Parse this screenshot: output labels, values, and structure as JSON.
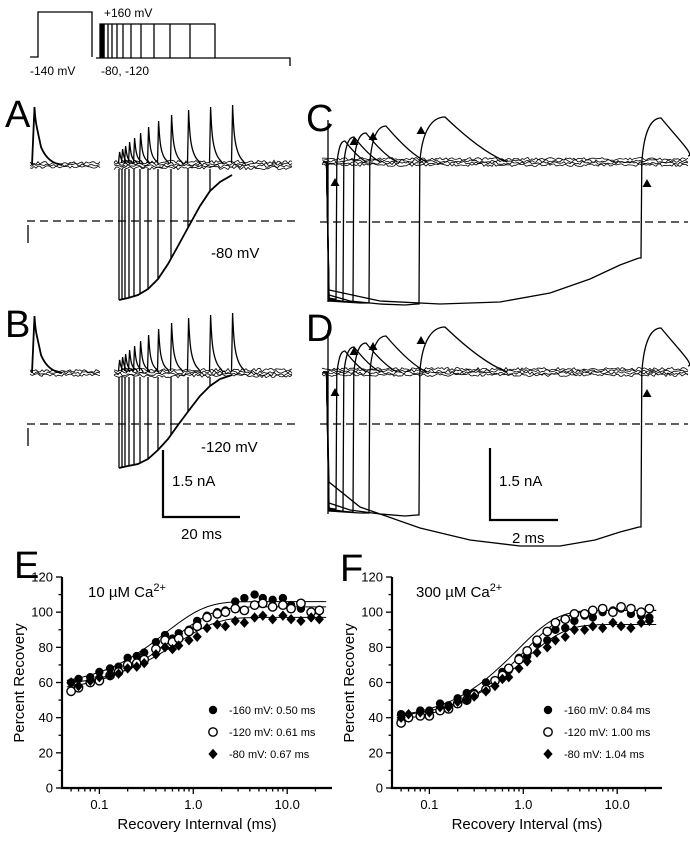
{
  "figure": {
    "panels": {
      "a": "A",
      "b": "B",
      "c": "C",
      "d": "D",
      "e": "E",
      "f": "F"
    },
    "protocol": {
      "top_label": "+160 mV",
      "left_label": "-140 mV",
      "bottom_label": "-80, -120"
    },
    "labels": {
      "a_voltage": "-80 mV",
      "b_voltage": "-120 mV",
      "b_scale_current": "1.5 nA",
      "b_scale_time": "20 ms",
      "d_scale_current": "1.5 nA",
      "d_scale_time": "2 ms"
    }
  },
  "chart_data": [
    {
      "id": "E",
      "type": "scatter",
      "title": "10 µM Ca",
      "title_sup": "2+",
      "xlabel": "Recovery Internval (ms)",
      "ylabel": "Percent Recovery",
      "xscale": "log",
      "xlim": [
        0.04,
        30
      ],
      "ylim": [
        0,
        120
      ],
      "xticks": [
        {
          "v": 0.1,
          "label": "0.1"
        },
        {
          "v": 1,
          "label": "1.0"
        },
        {
          "v": 10,
          "label": "10.0"
        }
      ],
      "yticks": [
        0,
        20,
        40,
        60,
        80,
        100,
        120
      ],
      "legend_position": "lower-right",
      "series": [
        {
          "name": "-160 mV: 0.50 ms",
          "marker": "circle-filled",
          "tau": 0.5,
          "fit_y0": 57,
          "fit_plateau": 106,
          "points": [
            [
              0.05,
              60
            ],
            [
              0.06,
              62
            ],
            [
              0.08,
              63
            ],
            [
              0.1,
              66
            ],
            [
              0.13,
              68
            ],
            [
              0.16,
              69
            ],
            [
              0.2,
              74
            ],
            [
              0.25,
              75
            ],
            [
              0.3,
              77
            ],
            [
              0.4,
              83
            ],
            [
              0.5,
              87
            ],
            [
              0.6,
              85
            ],
            [
              0.7,
              88
            ],
            [
              0.9,
              90
            ],
            [
              1.1,
              95
            ],
            [
              1.4,
              98
            ],
            [
              1.8,
              100
            ],
            [
              2.2,
              101
            ],
            [
              2.8,
              106
            ],
            [
              3.5,
              108
            ],
            [
              4.5,
              110
            ],
            [
              5.5,
              108
            ],
            [
              7,
              107
            ],
            [
              9,
              108
            ],
            [
              11,
              104
            ],
            [
              14,
              102
            ],
            [
              18,
              100
            ],
            [
              22,
              101
            ]
          ]
        },
        {
          "name": "-120 mV: 0.61 ms",
          "marker": "circle-open",
          "tau": 0.61,
          "fit_y0": 54,
          "fit_plateau": 103,
          "points": [
            [
              0.05,
              55
            ],
            [
              0.06,
              57
            ],
            [
              0.08,
              60
            ],
            [
              0.1,
              61
            ],
            [
              0.13,
              64
            ],
            [
              0.16,
              66
            ],
            [
              0.2,
              70
            ],
            [
              0.25,
              71
            ],
            [
              0.3,
              73
            ],
            [
              0.4,
              79
            ],
            [
              0.5,
              84
            ],
            [
              0.6,
              83
            ],
            [
              0.7,
              85
            ],
            [
              0.9,
              89
            ],
            [
              1.1,
              92
            ],
            [
              1.4,
              97
            ],
            [
              1.8,
              99
            ],
            [
              2.2,
              100
            ],
            [
              2.8,
              102
            ],
            [
              3.5,
              101
            ],
            [
              4.5,
              104
            ],
            [
              5.5,
              105
            ],
            [
              7,
              103
            ],
            [
              9,
              104
            ],
            [
              11,
              102
            ],
            [
              14,
              105
            ],
            [
              18,
              100
            ],
            [
              22,
              101
            ]
          ]
        },
        {
          "name": "-80 mV: 0.67 ms",
          "marker": "diamond-filled",
          "tau": 0.67,
          "fit_y0": 57,
          "fit_plateau": 97,
          "points": [
            [
              0.05,
              60
            ],
            [
              0.06,
              58
            ],
            [
              0.08,
              61
            ],
            [
              0.1,
              63
            ],
            [
              0.13,
              64
            ],
            [
              0.16,
              65
            ],
            [
              0.2,
              68
            ],
            [
              0.25,
              69
            ],
            [
              0.3,
              71
            ],
            [
              0.4,
              76
            ],
            [
              0.5,
              80
            ],
            [
              0.6,
              79
            ],
            [
              0.7,
              81
            ],
            [
              0.9,
              84
            ],
            [
              1.1,
              86
            ],
            [
              1.4,
              91
            ],
            [
              1.8,
              93
            ],
            [
              2.2,
              92
            ],
            [
              2.8,
              95
            ],
            [
              3.5,
              94
            ],
            [
              4.5,
              97
            ],
            [
              5.5,
              98
            ],
            [
              7,
              96
            ],
            [
              9,
              98
            ],
            [
              11,
              96
            ],
            [
              14,
              95
            ],
            [
              18,
              97
            ],
            [
              22,
              96
            ]
          ]
        }
      ]
    },
    {
      "id": "F",
      "type": "scatter",
      "title": "300 µM Ca",
      "title_sup": "2+",
      "xlabel": "Recovery Interval (ms)",
      "ylabel": "Percent Recovery",
      "xscale": "log",
      "xlim": [
        0.04,
        30
      ],
      "ylim": [
        0,
        120
      ],
      "xticks": [
        {
          "v": 0.1,
          "label": "0.1"
        },
        {
          "v": 1,
          "label": "1.0"
        },
        {
          "v": 10,
          "label": "10.0"
        }
      ],
      "yticks": [
        0,
        20,
        40,
        60,
        80,
        100,
        120
      ],
      "legend_position": "lower-right",
      "series": [
        {
          "name": "-160 mV: 0.84 ms",
          "marker": "circle-filled",
          "tau": 0.84,
          "fit_y0": 38,
          "fit_plateau": 101,
          "points": [
            [
              0.05,
              42
            ],
            [
              0.06,
              41
            ],
            [
              0.08,
              44
            ],
            [
              0.1,
              44
            ],
            [
              0.13,
              48
            ],
            [
              0.16,
              47
            ],
            [
              0.2,
              51
            ],
            [
              0.25,
              54
            ],
            [
              0.3,
              54
            ],
            [
              0.4,
              60
            ],
            [
              0.5,
              61
            ],
            [
              0.6,
              66
            ],
            [
              0.7,
              67
            ],
            [
              0.9,
              74
            ],
            [
              1.1,
              75
            ],
            [
              1.4,
              82
            ],
            [
              1.8,
              84
            ],
            [
              2.2,
              90
            ],
            [
              2.8,
              91
            ],
            [
              3.5,
              95
            ],
            [
              4.5,
              98
            ],
            [
              5.5,
              97
            ],
            [
              7,
              100
            ],
            [
              9,
              101
            ],
            [
              11,
              102
            ],
            [
              14,
              99
            ],
            [
              18,
              98
            ],
            [
              22,
              97
            ]
          ]
        },
        {
          "name": "-120 mV: 1.00 ms",
          "marker": "circle-open",
          "tau": 1.0,
          "fit_y0": 36,
          "fit_plateau": 101,
          "points": [
            [
              0.05,
              37
            ],
            [
              0.06,
              40
            ],
            [
              0.08,
              41
            ],
            [
              0.1,
              41
            ],
            [
              0.13,
              44
            ],
            [
              0.16,
              45
            ],
            [
              0.2,
              48
            ],
            [
              0.25,
              50
            ],
            [
              0.3,
              53
            ],
            [
              0.4,
              56
            ],
            [
              0.5,
              61
            ],
            [
              0.6,
              64
            ],
            [
              0.7,
              68
            ],
            [
              0.9,
              73
            ],
            [
              1.1,
              78
            ],
            [
              1.4,
              84
            ],
            [
              1.8,
              89
            ],
            [
              2.2,
              94
            ],
            [
              2.8,
              96
            ],
            [
              3.5,
              99
            ],
            [
              4.5,
              99
            ],
            [
              5.5,
              101
            ],
            [
              7,
              102
            ],
            [
              9,
              100
            ],
            [
              11,
              103
            ],
            [
              14,
              102
            ],
            [
              18,
              100
            ],
            [
              22,
              102
            ]
          ]
        },
        {
          "name": "-80 mV: 1.04 ms",
          "marker": "diamond-filled",
          "tau": 1.04,
          "fit_y0": 39,
          "fit_plateau": 93,
          "points": [
            [
              0.05,
              40
            ],
            [
              0.06,
              42
            ],
            [
              0.08,
              43
            ],
            [
              0.1,
              43
            ],
            [
              0.13,
              46
            ],
            [
              0.16,
              46
            ],
            [
              0.2,
              49
            ],
            [
              0.25,
              50
            ],
            [
              0.3,
              52
            ],
            [
              0.4,
              55
            ],
            [
              0.5,
              58
            ],
            [
              0.6,
              62
            ],
            [
              0.7,
              63
            ],
            [
              0.9,
              68
            ],
            [
              1.1,
              72
            ],
            [
              1.4,
              77
            ],
            [
              1.8,
              80
            ],
            [
              2.2,
              84
            ],
            [
              2.8,
              86
            ],
            [
              3.5,
              90
            ],
            [
              4.5,
              90
            ],
            [
              5.5,
              92
            ],
            [
              7,
              91
            ],
            [
              9,
              94
            ],
            [
              11,
              92
            ],
            [
              14,
              91
            ],
            [
              18,
              94
            ],
            [
              22,
              95
            ]
          ]
        }
      ]
    }
  ]
}
